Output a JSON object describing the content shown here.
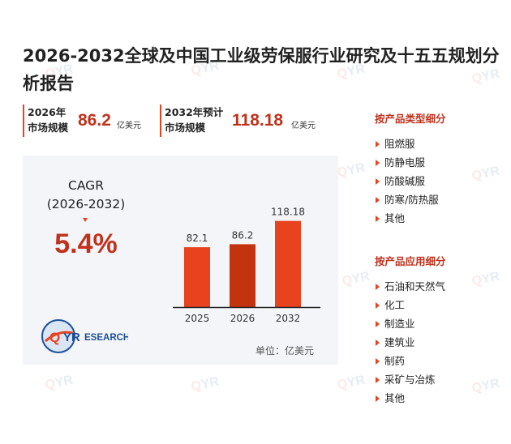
{
  "watermark": "QYRESEARCH",
  "title": "2026-2032全球及中国工业级劳保服行业研究及十五五规划分析报告",
  "stats": [
    {
      "label_line1": "2026年",
      "label_line2": "市场规模",
      "value": "86.2",
      "unit": "亿美元"
    },
    {
      "label_line1": "2032年预计",
      "label_line2": "市场规模",
      "value": "118.18",
      "unit": "亿美元"
    }
  ],
  "cagr": {
    "label_line1": "CAGR",
    "label_line2": "(2026-2032)",
    "value": "5.4%"
  },
  "logo": {
    "text_q": "Q",
    "text_yr": "YR",
    "text_rest": "ESEARCH"
  },
  "unit_note": "单位：亿美元",
  "colors": {
    "accent": "#e8431f",
    "dark_red": "#c0321c",
    "bar_2026": "#c3330e",
    "bar_other": "#e8431f",
    "panel_bg": "#f3f5f9"
  },
  "chart_data": {
    "type": "bar",
    "categories": [
      "2025",
      "2026",
      "2032"
    ],
    "values": [
      82.1,
      86.2,
      118.18
    ],
    "value_labels": [
      "82.1",
      "86.2",
      "118.18"
    ],
    "title": "",
    "xlabel": "",
    "ylabel": "",
    "ylim": [
      0,
      120
    ],
    "grid": false,
    "legend": "none"
  },
  "sidebar": {
    "type_heading": "按产品类型细分",
    "type_items": [
      "阻燃服",
      "防静电服",
      "防酸碱服",
      "防寒/防热服",
      "其他"
    ],
    "app_heading": "按产品应用细分",
    "app_items": [
      "石油和天然气",
      "化工",
      "制造业",
      "建筑业",
      "制药",
      "采矿与冶炼",
      "其他"
    ]
  }
}
